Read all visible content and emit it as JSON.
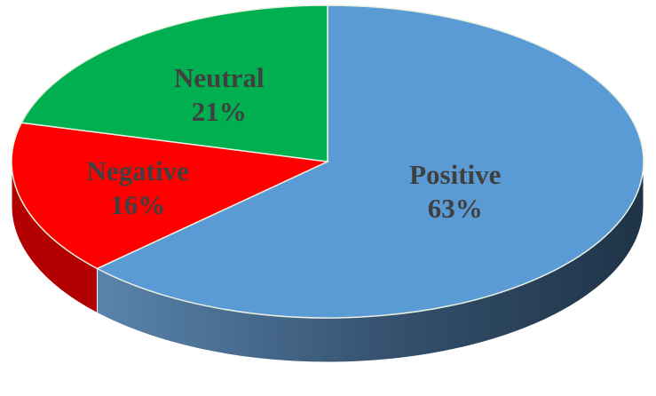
{
  "chart_data": {
    "type": "pie",
    "style": "3d",
    "title": "",
    "legend": "none",
    "slices": [
      {
        "label": "Positive",
        "value": 63,
        "value_label": "63%",
        "color": "#5b9bd5",
        "side_color": "#2f4f6f"
      },
      {
        "label": "Negative",
        "value": 16,
        "value_label": "16%",
        "color": "#ff0000",
        "side_color": "#b30000"
      },
      {
        "label": "Neutral",
        "value": 21,
        "value_label": "21%",
        "color": "#00b050",
        "side_color": "#007a37"
      }
    ]
  }
}
